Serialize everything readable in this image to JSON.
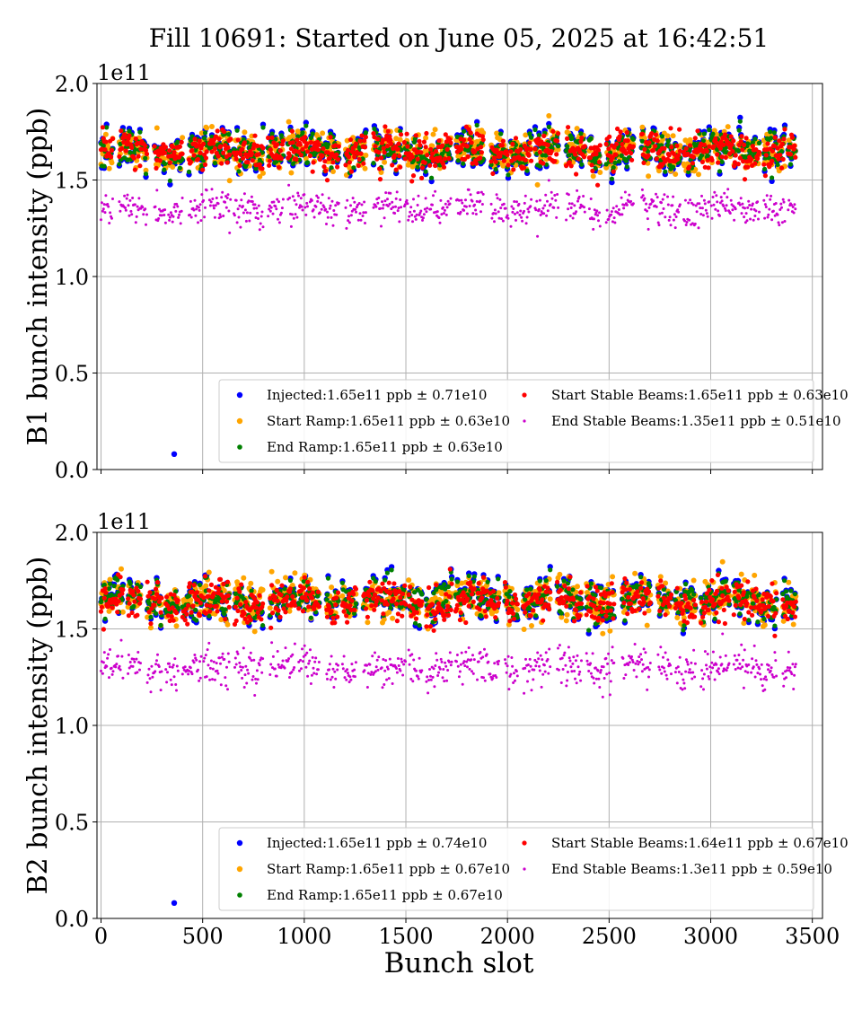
{
  "figure": {
    "title": "Fill 10691: Started on June 05, 2025 at 16:42:51",
    "xlabel": "Bunch slot"
  },
  "colors": {
    "injected": "#0000ff",
    "start_ramp": "#ffa500",
    "end_ramp": "#008000",
    "start_stable": "#ff0000",
    "end_stable": "#cc00cc",
    "grid": "#b0b0b0"
  },
  "chart_data": [
    {
      "type": "scatter",
      "ylabel": "B1 bunch intensity (ppb)",
      "y_scale_label": "1e11",
      "xlim": [
        -20,
        3550
      ],
      "ylim": [
        0.0,
        2.0
      ],
      "xticks": [
        0,
        500,
        1000,
        1500,
        2000,
        2500,
        3000,
        3500
      ],
      "yticks": [
        0.0,
        0.5,
        1.0,
        1.5,
        2.0
      ],
      "xticklabels": [
        "0",
        "500",
        "1000",
        "1500",
        "2000",
        "2500",
        "3000",
        "3500"
      ],
      "yticklabels": [
        "0.0",
        "0.5",
        "1.0",
        "1.5",
        "2.0"
      ],
      "show_xticklabels": false,
      "grid": true,
      "legend_location": "lower-right",
      "x_range": [
        0,
        3420
      ],
      "outlier": {
        "x": 360,
        "y": 0.08
      },
      "series": [
        {
          "name": "Injected:1.65e11 ppb ± 0.71e10",
          "key": "injected",
          "mean": 1.65,
          "std": 0.071
        },
        {
          "name": "Start Ramp:1.65e11 ppb ± 0.63e10",
          "key": "start_ramp",
          "mean": 1.65,
          "std": 0.063
        },
        {
          "name": "End Ramp:1.65e11 ppb ± 0.63e10",
          "key": "end_ramp",
          "mean": 1.65,
          "std": 0.063
        },
        {
          "name": "Start Stable Beams:1.65e11 ppb ± 0.63e10",
          "key": "start_stable",
          "mean": 1.65,
          "std": 0.063
        },
        {
          "name": "End Stable Beams:1.35e11 ppb ± 0.51e10",
          "key": "end_stable",
          "mean": 1.35,
          "std": 0.051
        }
      ]
    },
    {
      "type": "scatter",
      "ylabel": "B2 bunch intensity (ppb)",
      "y_scale_label": "1e11",
      "xlim": [
        -20,
        3550
      ],
      "ylim": [
        0.0,
        2.0
      ],
      "xticks": [
        0,
        500,
        1000,
        1500,
        2000,
        2500,
        3000,
        3500
      ],
      "yticks": [
        0.0,
        0.5,
        1.0,
        1.5,
        2.0
      ],
      "xticklabels": [
        "0",
        "500",
        "1000",
        "1500",
        "2000",
        "2500",
        "3000",
        "3500"
      ],
      "yticklabels": [
        "0.0",
        "0.5",
        "1.0",
        "1.5",
        "2.0"
      ],
      "show_xticklabels": true,
      "grid": true,
      "legend_location": "lower-right",
      "x_range": [
        0,
        3420
      ],
      "outlier": {
        "x": 360,
        "y": 0.08
      },
      "series": [
        {
          "name": "Injected:1.65e11 ppb ± 0.74e10",
          "key": "injected",
          "mean": 1.65,
          "std": 0.074
        },
        {
          "name": "Start Ramp:1.65e11 ppb ± 0.67e10",
          "key": "start_ramp",
          "mean": 1.65,
          "std": 0.067
        },
        {
          "name": "End Ramp:1.65e11 ppb ± 0.67e10",
          "key": "end_ramp",
          "mean": 1.65,
          "std": 0.067
        },
        {
          "name": "Start Stable Beams:1.64e11 ppb ± 0.67e10",
          "key": "start_stable",
          "mean": 1.64,
          "std": 0.067
        },
        {
          "name": "End Stable Beams:1.3e11 ppb ± 0.59e10",
          "key": "end_stable",
          "mean": 1.3,
          "std": 0.059
        }
      ]
    }
  ]
}
